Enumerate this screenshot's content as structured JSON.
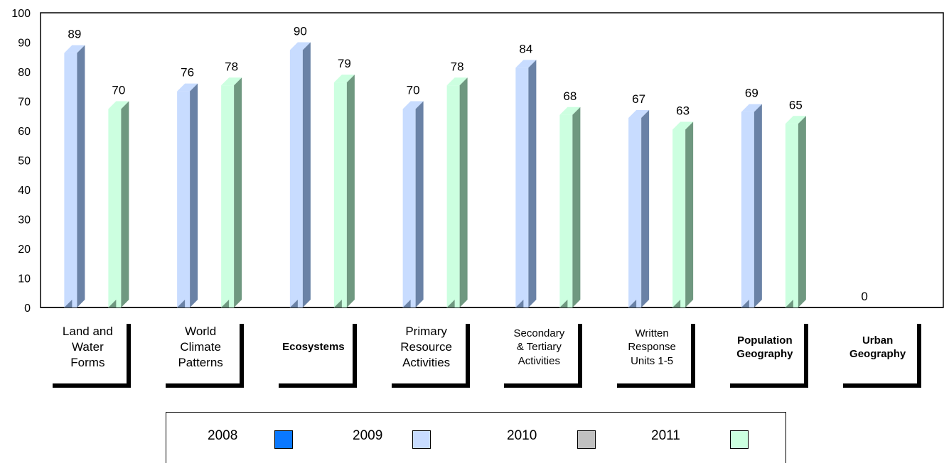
{
  "chart_data": {
    "type": "bar",
    "categories": [
      "Land and\nWater\nForms",
      "World\nClimate\nPatterns",
      "Ecosystems",
      "Primary\nResource\nActivities",
      "Secondary\n& Tertiary\nActivities",
      "Written\nResponse\nUnits 1-5",
      "Population\nGeography",
      "Urban\nGeography"
    ],
    "category_styles": [
      "normal",
      "normal",
      "bold",
      "normal",
      "small",
      "small",
      "bold",
      "bold"
    ],
    "series": [
      {
        "name": "2008",
        "values": [
          null,
          null,
          null,
          null,
          null,
          null,
          null,
          null
        ],
        "color": "#0a78ff"
      },
      {
        "name": "2009",
        "values": [
          89,
          76,
          90,
          70,
          84,
          67,
          69,
          0
        ],
        "color": "#c8dcff",
        "dark_color": "#6a82a6"
      },
      {
        "name": "2010",
        "values": [
          null,
          null,
          null,
          null,
          null,
          null,
          null,
          null
        ],
        "color": "#c0c0c0"
      },
      {
        "name": "2011",
        "values": [
          70,
          78,
          79,
          78,
          68,
          63,
          65,
          null
        ],
        "color": "#ccffe0",
        "dark_color": "#6f9880"
      }
    ],
    "yticks": [
      "0",
      "10",
      "20",
      "30",
      "40",
      "50",
      "60",
      "70",
      "80",
      "90",
      "100"
    ],
    "ylim": [
      0,
      100
    ],
    "grid": false,
    "legend_position": "bottom"
  }
}
